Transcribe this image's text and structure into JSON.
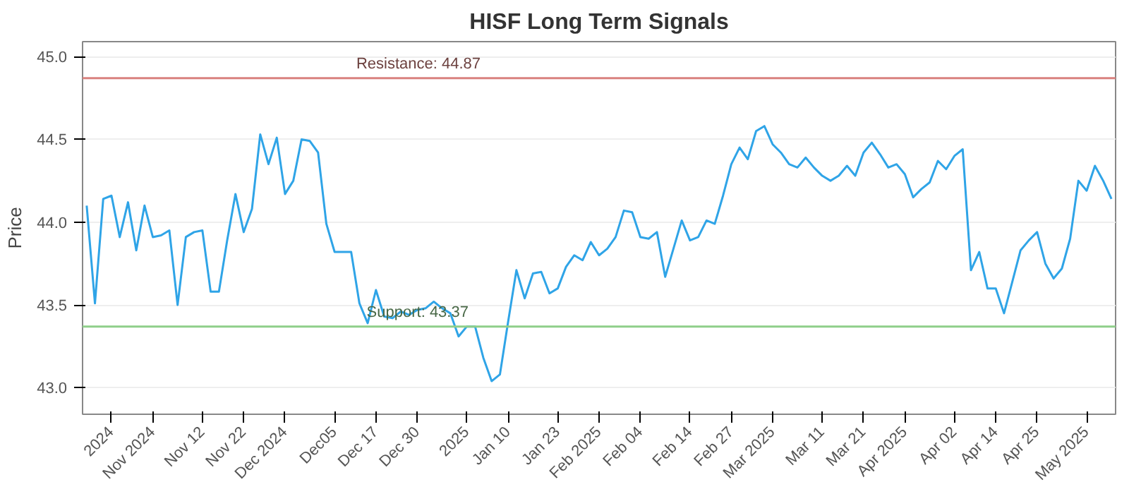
{
  "chart_data": {
    "type": "line",
    "title": "HISF Long Term Signals",
    "ylabel": "Price",
    "categories": [
      null,
      null,
      null,
      "2024",
      null,
      null,
      null,
      null,
      "Nov 2024",
      null,
      null,
      null,
      null,
      null,
      "Nov 12",
      null,
      null,
      null,
      null,
      "Nov 22",
      null,
      null,
      null,
      null,
      "Dec 2024",
      null,
      null,
      null,
      null,
      null,
      "Dec05",
      null,
      null,
      null,
      null,
      "Dec 17",
      null,
      null,
      null,
      null,
      "Dec 30",
      null,
      null,
      null,
      null,
      null,
      "2025",
      null,
      null,
      null,
      null,
      "Jan 10",
      null,
      null,
      null,
      null,
      null,
      "Jan 23",
      null,
      null,
      null,
      null,
      "Feb 2025",
      null,
      null,
      null,
      null,
      "Feb 04",
      null,
      null,
      null,
      null,
      null,
      "Feb 14",
      null,
      null,
      null,
      null,
      "Feb 27",
      null,
      null,
      null,
      null,
      "Mar 2025",
      null,
      null,
      null,
      null,
      null,
      "Mar 11",
      null,
      null,
      null,
      null,
      "Mar 21",
      null,
      null,
      null,
      null,
      "Apr 2025",
      null,
      null,
      null,
      null,
      null,
      "Apr 02",
      null,
      null,
      null,
      null,
      "Apr 14",
      null,
      null,
      null,
      null,
      "Apr 25",
      null,
      null,
      null,
      null,
      null,
      "May 2025",
      null,
      null,
      null
    ],
    "series": [
      {
        "color": "#2fa4e7",
        "values": [
          44.1,
          43.51,
          44.14,
          44.16,
          43.91,
          44.12,
          43.83,
          44.1,
          43.91,
          43.92,
          43.95,
          43.5,
          43.91,
          43.94,
          43.95,
          43.58,
          43.58,
          43.89,
          44.17,
          43.94,
          44.08,
          44.53,
          44.35,
          44.51,
          44.17,
          44.25,
          44.5,
          44.49,
          44.42,
          43.99,
          43.82,
          43.82,
          43.82,
          43.51,
          43.39,
          43.59,
          43.43,
          43.42,
          43.46,
          43.44,
          43.47,
          43.48,
          43.52,
          43.48,
          43.45,
          43.31,
          43.37,
          43.37,
          43.18,
          43.04,
          43.08,
          43.4,
          43.71,
          43.54,
          43.69,
          43.7,
          43.57,
          43.6,
          43.73,
          43.8,
          43.77,
          43.88,
          43.8,
          43.84,
          43.91,
          44.07,
          44.06,
          43.91,
          43.9,
          43.94,
          43.67,
          43.84,
          44.01,
          43.89,
          43.91,
          44.01,
          43.99,
          44.16,
          44.35,
          44.45,
          44.38,
          44.55,
          44.58,
          44.47,
          44.42,
          44.35,
          44.33,
          44.39,
          44.33,
          44.28,
          44.25,
          44.28,
          44.34,
          44.28,
          44.42,
          44.48,
          44.41,
          44.33,
          44.35,
          44.29,
          44.15,
          44.2,
          44.24,
          44.37,
          44.32,
          44.4,
          44.44,
          43.71,
          43.82,
          43.6,
          43.6,
          43.45,
          43.64,
          43.83,
          43.89,
          43.94,
          43.75,
          43.66,
          43.72,
          43.9,
          44.25,
          44.19,
          44.34,
          44.25,
          44.14
        ]
      }
    ],
    "ylim": [
      42.84,
      45.09
    ],
    "yticks": [
      {
        "value": 43.0,
        "label": "43.0"
      },
      {
        "value": 43.5,
        "label": "43.5"
      },
      {
        "value": 44.0,
        "label": "44.0"
      },
      {
        "value": 44.5,
        "label": "44.5"
      },
      {
        "value": 45.0,
        "label": "45.0"
      }
    ],
    "ref_lines": [
      {
        "axis": "y",
        "value": 44.87,
        "label": "Resistance: 44.87",
        "color": "#d9827f"
      },
      {
        "axis": "y",
        "value": 43.37,
        "label": "Support: 43.37",
        "color": "#8fcf8a"
      }
    ],
    "grid": "y",
    "marker": "none",
    "line_style": "solid"
  }
}
